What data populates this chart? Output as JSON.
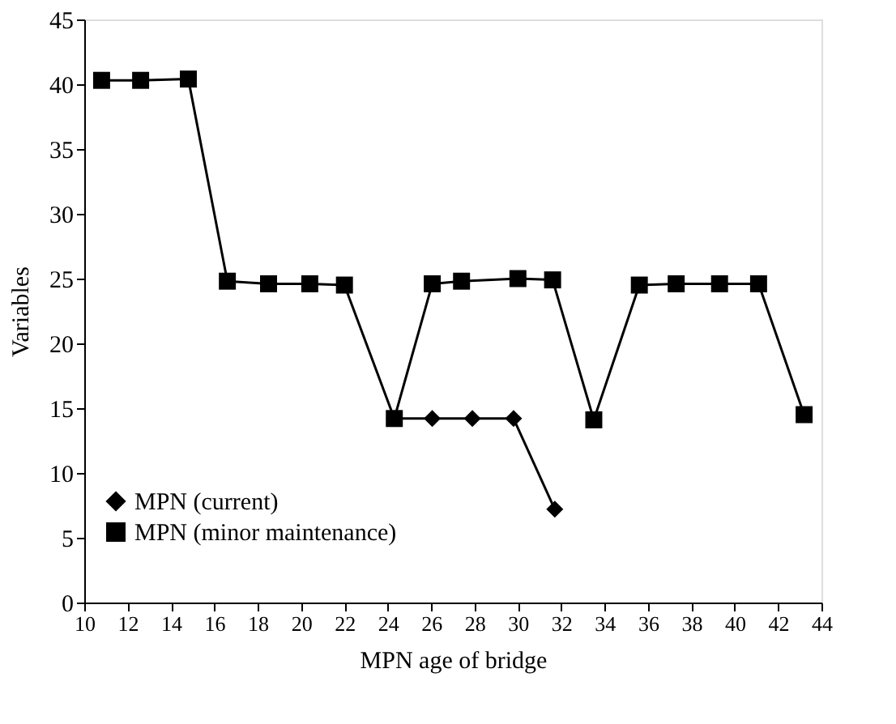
{
  "chart_data": {
    "type": "line",
    "xlabel": "MPN age of bridge",
    "ylabel": "Variables",
    "xlim": [
      10,
      44
    ],
    "xticks": [
      10,
      12,
      14,
      16,
      18,
      20,
      22,
      24,
      26,
      28,
      30,
      32,
      34,
      36,
      38,
      40,
      42,
      44
    ],
    "ylim": [
      0,
      45
    ],
    "yticks": [
      0,
      5,
      10,
      15,
      20,
      25,
      30,
      35,
      40,
      45
    ],
    "grid": false,
    "legend": "bottom left",
    "series": [
      {
        "name": "MPN (current)",
        "color": "#000000",
        "marker": "diamond",
        "x": [
          24.3,
          26.05,
          27.9,
          29.8,
          31.7
        ],
        "values": [
          14.2,
          14.2,
          14.2,
          14.2,
          7.2
        ]
      },
      {
        "name": "MPN (minor maintenance)",
        "color": "#000000",
        "marker": "square",
        "x": [
          10.8,
          12.6,
          14.8,
          16.6,
          18.5,
          20.4,
          22.0,
          24.3,
          26.05,
          27.4,
          30.0,
          31.6,
          33.5,
          35.6,
          37.3,
          39.3,
          41.1,
          43.2
        ],
        "values": [
          40.3,
          40.3,
          40.4,
          24.8,
          24.6,
          24.6,
          24.5,
          14.2,
          24.6,
          24.8,
          25.0,
          24.9,
          14.1,
          24.5,
          24.6,
          24.6,
          24.6,
          14.5
        ]
      }
    ]
  }
}
